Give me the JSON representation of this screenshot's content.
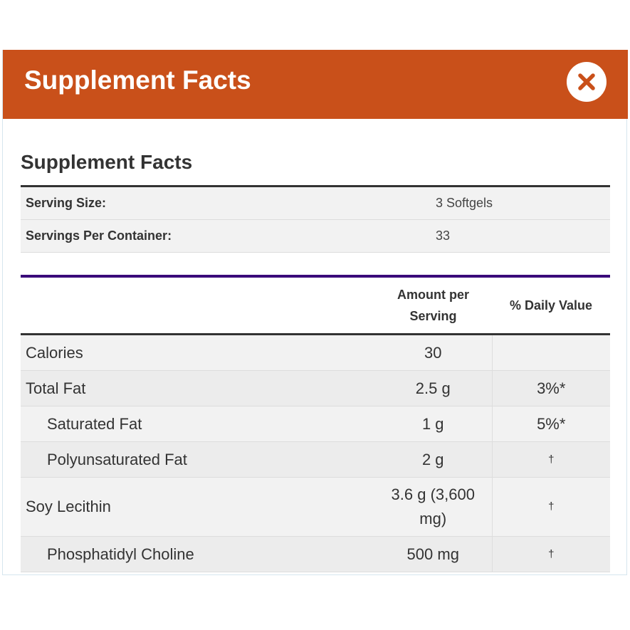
{
  "header": {
    "title": "Supplement Facts"
  },
  "panel": {
    "heading": "Supplement Facts",
    "serving": [
      {
        "label": "Serving Size:",
        "value": "3 Softgels"
      },
      {
        "label": "Servings Per Container:",
        "value": "33"
      }
    ],
    "nutrients": {
      "columns": [
        "Amount per Serving",
        "% Daily Value"
      ],
      "rows": [
        {
          "name": "Calories",
          "amount": "30"
        },
        {
          "name": "Total Fat",
          "amount": "2.5 g",
          "dv": "3%*"
        },
        {
          "name": "Saturated Fat",
          "amount": "1 g",
          "dv": "5%*",
          "indent": true
        },
        {
          "name": "Polyunsaturated Fat",
          "amount": "2 g",
          "dv": "†",
          "indent": true
        },
        {
          "name": "Soy Lecithin",
          "amount": "3.6 g (3,600 mg)",
          "dv": "†"
        },
        {
          "name": "Phosphatidyl Choline",
          "amount": "500 mg",
          "dv": "†",
          "indent": true
        }
      ]
    }
  }
}
